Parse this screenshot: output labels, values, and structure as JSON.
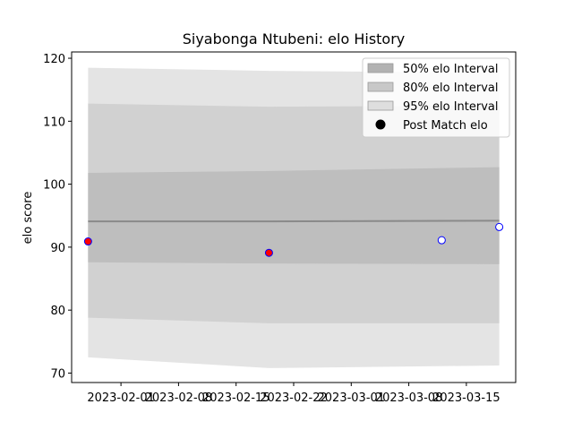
{
  "chart_data": {
    "type": "line",
    "title": "Siyabonga Ntubeni: elo History",
    "xlabel": "",
    "ylabel": "elo score",
    "x_dates": [
      "2023-01-28",
      "2023-02-19",
      "2023-03-12",
      "2023-03-19"
    ],
    "xlim": [
      "2023-01-26",
      "2023-03-21"
    ],
    "ylim": [
      68.5,
      121
    ],
    "x_ticks": [
      "2023-02-01",
      "2023-02-08",
      "2023-02-15",
      "2023-02-22",
      "2023-03-01",
      "2023-03-08",
      "2023-03-15"
    ],
    "y_ticks": [
      70,
      80,
      90,
      100,
      110,
      120
    ],
    "grid": false,
    "legend_position": "top-right",
    "band_dates": [
      "2023-01-28",
      "2023-02-19",
      "2023-03-19"
    ],
    "series": [
      {
        "name": "95% elo Interval",
        "kind": "band",
        "color": "#e4e4e4",
        "upper": [
          118.5,
          118.0,
          117.7
        ],
        "lower": [
          72.5,
          70.8,
          71.2
        ]
      },
      {
        "name": "80% elo Interval",
        "kind": "band",
        "color": "#d1d1d1",
        "upper": [
          112.8,
          112.3,
          112.5
        ],
        "lower": [
          78.8,
          77.9,
          77.9
        ]
      },
      {
        "name": "50% elo Interval",
        "kind": "band",
        "color": "#bebebe",
        "upper": [
          101.8,
          102.1,
          102.7
        ],
        "lower": [
          87.6,
          87.4,
          87.3
        ]
      },
      {
        "name": "",
        "kind": "mean-line",
        "color": "#8a8a8a",
        "values": [
          94.1,
          94.1,
          94.2
        ]
      },
      {
        "name": "Post Match elo",
        "kind": "points",
        "x": [
          "2023-01-28",
          "2023-02-19",
          "2023-03-12",
          "2023-03-19"
        ],
        "y": [
          90.9,
          89.1,
          91.1,
          93.2
        ],
        "fills": [
          "#ff0000",
          "#ff0000",
          "#ffffff",
          "#ffffff"
        ],
        "edge_color": "#0000ff"
      }
    ],
    "legend": [
      {
        "label": "50% elo Interval",
        "swatch": "#b2b2b2",
        "kind": "patch"
      },
      {
        "label": "80% elo Interval",
        "swatch": "#c8c8c8",
        "kind": "patch"
      },
      {
        "label": "95% elo Interval",
        "swatch": "#dedede",
        "kind": "patch"
      },
      {
        "label": "Post Match elo",
        "swatch": "#000000",
        "kind": "marker"
      }
    ]
  }
}
